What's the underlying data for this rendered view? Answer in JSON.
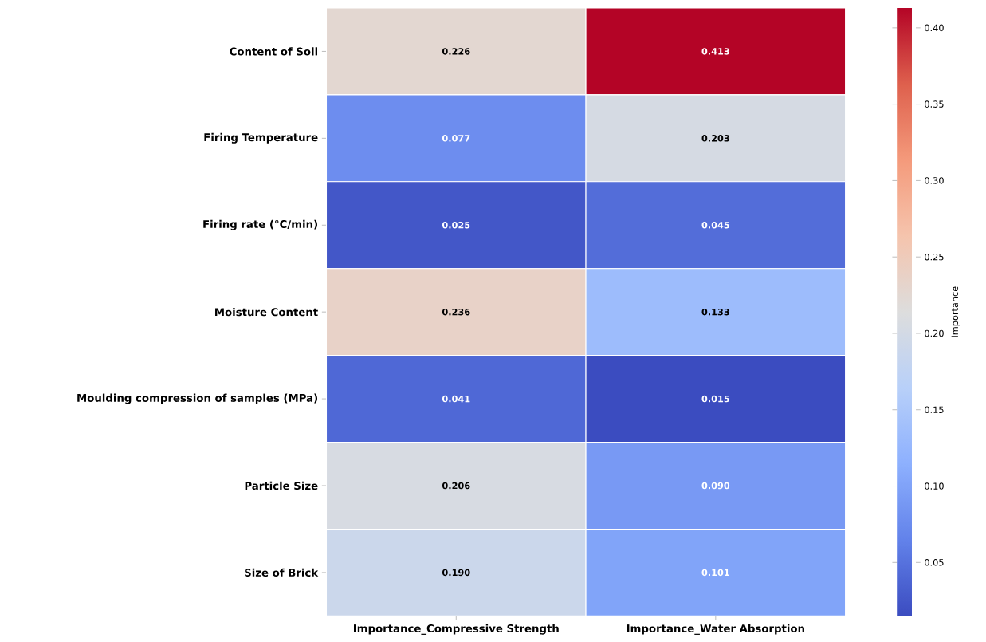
{
  "chart_data": {
    "type": "heatmap",
    "categories": [
      "Importance_Compressive Strength",
      "Importance_Water Absorption"
    ],
    "y_categories": [
      "Content of Soil",
      "Firing Temperature",
      "Firing rate (°C/min)",
      "Moisture Content",
      "Moulding compression of samples (MPa)",
      "Particle Size",
      "Size of Brick"
    ],
    "cells": [
      [
        0.226,
        0.413
      ],
      [
        0.077,
        0.203
      ],
      [
        0.025,
        0.045
      ],
      [
        0.236,
        0.133
      ],
      [
        0.041,
        0.015
      ],
      [
        0.206,
        0.09
      ],
      [
        0.19,
        0.101
      ]
    ],
    "cell_labels": [
      [
        "0.226",
        "0.413"
      ],
      [
        "0.077",
        "0.203"
      ],
      [
        "0.025",
        "0.045"
      ],
      [
        "0.236",
        "0.133"
      ],
      [
        "0.041",
        "0.015"
      ],
      [
        "0.206",
        "0.090"
      ],
      [
        "0.190",
        "0.101"
      ]
    ],
    "clim": [
      0.015,
      0.413
    ],
    "cticks": [
      {
        "value": 0.05,
        "label": "0.05"
      },
      {
        "value": 0.1,
        "label": "0.10"
      },
      {
        "value": 0.15,
        "label": "0.15"
      },
      {
        "value": 0.2,
        "label": "0.20"
      },
      {
        "value": 0.25,
        "label": "0.25"
      },
      {
        "value": 0.3,
        "label": "0.30"
      },
      {
        "value": 0.35,
        "label": "0.35"
      },
      {
        "value": 0.4,
        "label": "0.40"
      }
    ],
    "clabel": "Importance"
  }
}
